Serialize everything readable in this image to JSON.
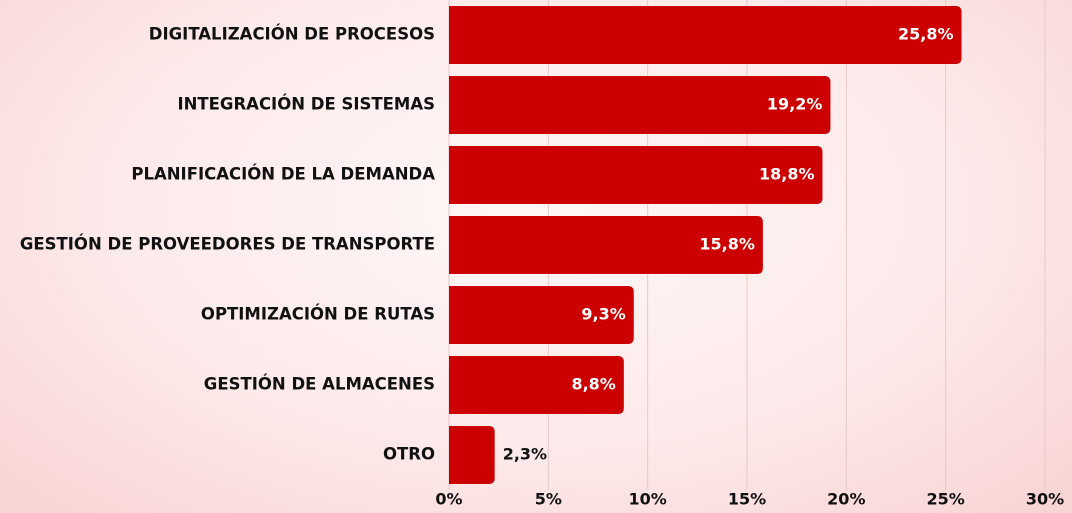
{
  "chart_data": {
    "type": "bar",
    "orientation": "horizontal",
    "categories": [
      "DIGITALIZACIÓN DE PROCESOS",
      "INTEGRACIÓN DE SISTEMAS",
      "PLANIFICACIÓN DE LA DEMANDA",
      "GESTIÓN DE PROVEEDORES DE TRANSPORTE",
      "OPTIMIZACIÓN DE RUTAS",
      "GESTIÓN DE ALMACENES",
      "OTRO"
    ],
    "values": [
      25.8,
      19.2,
      18.8,
      15.8,
      9.3,
      8.8,
      2.3
    ],
    "value_labels": [
      "25,8%",
      "19,2%",
      "18,8%",
      "15,8%",
      "9,3%",
      "8,8%",
      "2,3%"
    ],
    "color": "#cc0000",
    "xlim": [
      0,
      30
    ],
    "xticks": [
      {
        "value": 0,
        "label": "0%"
      },
      {
        "value": 5,
        "label": "5%"
      },
      {
        "value": 10,
        "label": "10%"
      },
      {
        "value": 15,
        "label": "15%"
      },
      {
        "value": 20,
        "label": "20%"
      },
      {
        "value": 25,
        "label": "25%"
      },
      {
        "value": 30,
        "label": "30%"
      }
    ],
    "grid": true
  }
}
